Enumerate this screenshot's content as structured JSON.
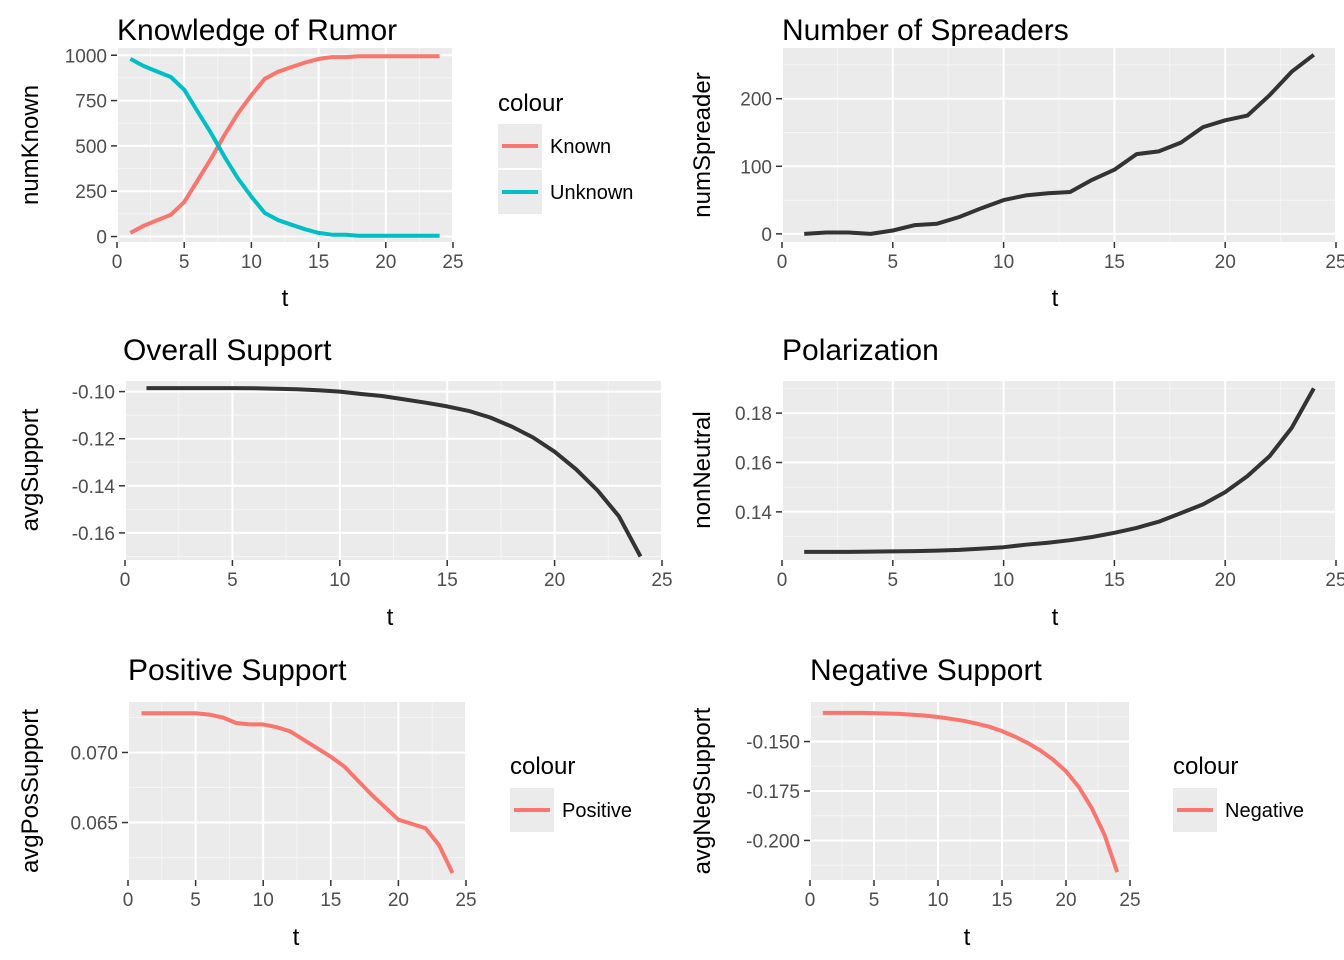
{
  "colors": {
    "known": "#f8766d",
    "unknown": "#00bfc4",
    "line_default": "#333333",
    "positive": "#f8766d",
    "negative": "#f8766d",
    "panel_bg": "#ebebeb",
    "grid_major": "#ffffff",
    "grid_minor": "#f5f5f5",
    "tick_text": "#4d4d4d"
  },
  "chart_data": [
    {
      "id": "knowledge",
      "type": "line",
      "title": "Knowledge of Rumor",
      "xlabel": "t",
      "ylabel": "numKnown",
      "xlim": [
        0,
        25
      ],
      "ylim": [
        -30,
        1040
      ],
      "xticks": [
        0,
        5,
        10,
        15,
        20,
        25
      ],
      "yticks": [
        0,
        250,
        500,
        750,
        1000
      ],
      "ytick_labels": [
        "0",
        "250",
        "500",
        "750",
        "1000"
      ],
      "legend": {
        "title": "colour",
        "position": "right"
      },
      "x": [
        1,
        2,
        3,
        4,
        5,
        6,
        7,
        8,
        9,
        10,
        11,
        12,
        13,
        14,
        15,
        16,
        17,
        18,
        19,
        20,
        21,
        22,
        23,
        24
      ],
      "series": [
        {
          "name": "Known",
          "color": "#f8766d",
          "values": [
            20,
            60,
            90,
            120,
            190,
            310,
            430,
            560,
            680,
            780,
            870,
            910,
            935,
            960,
            980,
            990,
            990,
            995,
            995,
            995,
            995,
            995,
            995,
            995
          ]
        },
        {
          "name": "Unknown",
          "color": "#00bfc4",
          "values": [
            980,
            940,
            910,
            880,
            810,
            690,
            570,
            440,
            320,
            220,
            130,
            90,
            65,
            40,
            20,
            10,
            10,
            5,
            5,
            5,
            5,
            5,
            5,
            5
          ]
        }
      ]
    },
    {
      "id": "spreaders",
      "type": "line",
      "title": "Number of Spreaders",
      "xlabel": "t",
      "ylabel": "numSpreader",
      "xlim": [
        0,
        25
      ],
      "ylim": [
        -12,
        275
      ],
      "xticks": [
        0,
        5,
        10,
        15,
        20,
        25
      ],
      "yticks": [
        0,
        100,
        200
      ],
      "ytick_labels": [
        "0",
        "100",
        "200"
      ],
      "x": [
        1,
        2,
        3,
        4,
        5,
        6,
        7,
        8,
        9,
        10,
        11,
        12,
        13,
        14,
        15,
        16,
        17,
        18,
        19,
        20,
        21,
        22,
        23,
        24
      ],
      "series": [
        {
          "color": "#333333",
          "values": [
            0,
            2,
            2,
            0,
            5,
            13,
            15,
            25,
            38,
            50,
            57,
            60,
            62,
            80,
            95,
            118,
            122,
            135,
            158,
            168,
            175,
            205,
            240,
            265
          ]
        }
      ]
    },
    {
      "id": "overall",
      "type": "line",
      "title": "Overall Support",
      "xlabel": "t",
      "ylabel": "avgSupport",
      "xlim": [
        0,
        25
      ],
      "ylim": [
        -0.1715,
        -0.0955
      ],
      "xticks": [
        0,
        5,
        10,
        15,
        20,
        25
      ],
      "yticks": [
        -0.16,
        -0.14,
        -0.12,
        -0.1
      ],
      "ytick_labels": [
        "-0.16",
        "-0.14",
        "-0.12",
        "-0.10"
      ],
      "x": [
        1,
        2,
        3,
        4,
        5,
        6,
        7,
        8,
        9,
        10,
        11,
        12,
        13,
        14,
        15,
        16,
        17,
        18,
        19,
        20,
        21,
        22,
        23,
        24
      ],
      "series": [
        {
          "color": "#333333",
          "values": [
            -0.0985,
            -0.0985,
            -0.0985,
            -0.0985,
            -0.0985,
            -0.0986,
            -0.0988,
            -0.099,
            -0.0994,
            -0.1,
            -0.101,
            -0.1019,
            -0.1033,
            -0.1047,
            -0.1063,
            -0.1082,
            -0.111,
            -0.1148,
            -0.1195,
            -0.1255,
            -0.133,
            -0.142,
            -0.153,
            -0.17
          ]
        }
      ]
    },
    {
      "id": "polarization",
      "type": "line",
      "title": "Polarization",
      "xlabel": "t",
      "ylabel": "nonNeutral",
      "xlim": [
        0,
        25
      ],
      "ylim": [
        0.1205,
        0.193
      ],
      "xticks": [
        0,
        5,
        10,
        15,
        20,
        25
      ],
      "yticks": [
        0.14,
        0.16,
        0.18
      ],
      "ytick_labels": [
        "0.14",
        "0.16",
        "0.18"
      ],
      "x": [
        1,
        2,
        3,
        4,
        5,
        6,
        7,
        8,
        9,
        10,
        11,
        12,
        13,
        14,
        15,
        16,
        17,
        18,
        19,
        20,
        21,
        22,
        23,
        24
      ],
      "series": [
        {
          "color": "#333333",
          "values": [
            0.1238,
            0.1238,
            0.1238,
            0.1239,
            0.124,
            0.1241,
            0.1243,
            0.1246,
            0.1251,
            0.1257,
            0.1267,
            0.1275,
            0.1285,
            0.1298,
            0.1315,
            0.1335,
            0.136,
            0.1395,
            0.143,
            0.148,
            0.1545,
            0.1625,
            0.174,
            0.19
          ]
        }
      ]
    },
    {
      "id": "positive",
      "type": "line",
      "title": "Positive Support",
      "xlabel": "t",
      "ylabel": "avgPosSupport",
      "xlim": [
        0,
        25
      ],
      "ylim": [
        0.0609,
        0.0736
      ],
      "xticks": [
        0,
        5,
        10,
        15,
        20,
        25
      ],
      "yticks": [
        0.065,
        0.07
      ],
      "ytick_labels": [
        "0.065",
        "0.070"
      ],
      "legend": {
        "title": "colour",
        "position": "right"
      },
      "x": [
        1,
        2,
        3,
        4,
        5,
        6,
        7,
        8,
        9,
        10,
        11,
        12,
        13,
        14,
        15,
        16,
        17,
        18,
        19,
        20,
        21,
        22,
        23,
        24
      ],
      "series": [
        {
          "name": "Positive",
          "color": "#f8766d",
          "values": [
            0.0728,
            0.0728,
            0.0728,
            0.0728,
            0.0728,
            0.0727,
            0.0725,
            0.0721,
            0.072,
            0.072,
            0.0718,
            0.0715,
            0.0709,
            0.0703,
            0.0697,
            0.069,
            0.068,
            0.067,
            0.0661,
            0.0652,
            0.0649,
            0.0646,
            0.0634,
            0.0614
          ]
        }
      ]
    },
    {
      "id": "negative",
      "type": "line",
      "title": "Negative Support",
      "xlabel": "t",
      "ylabel": "avgNegSupport",
      "xlim": [
        0,
        25
      ],
      "ylim": [
        -0.22,
        -0.13
      ],
      "xticks": [
        0,
        5,
        10,
        15,
        20,
        25
      ],
      "yticks": [
        -0.2,
        -0.175,
        -0.15
      ],
      "ytick_labels": [
        "-0.200",
        "-0.175",
        "-0.150"
      ],
      "legend": {
        "title": "colour",
        "position": "right"
      },
      "x": [
        1,
        2,
        3,
        4,
        5,
        6,
        7,
        8,
        9,
        10,
        11,
        12,
        13,
        14,
        15,
        16,
        17,
        18,
        19,
        20,
        21,
        22,
        23,
        24
      ],
      "series": [
        {
          "name": "Negative",
          "color": "#f8766d",
          "values": [
            -0.1355,
            -0.1355,
            -0.1355,
            -0.1355,
            -0.1356,
            -0.1358,
            -0.136,
            -0.1364,
            -0.1369,
            -0.1376,
            -0.1385,
            -0.1395,
            -0.1409,
            -0.1425,
            -0.1447,
            -0.1475,
            -0.1507,
            -0.1545,
            -0.1592,
            -0.165,
            -0.173,
            -0.1835,
            -0.197,
            -0.216
          ]
        }
      ]
    }
  ]
}
